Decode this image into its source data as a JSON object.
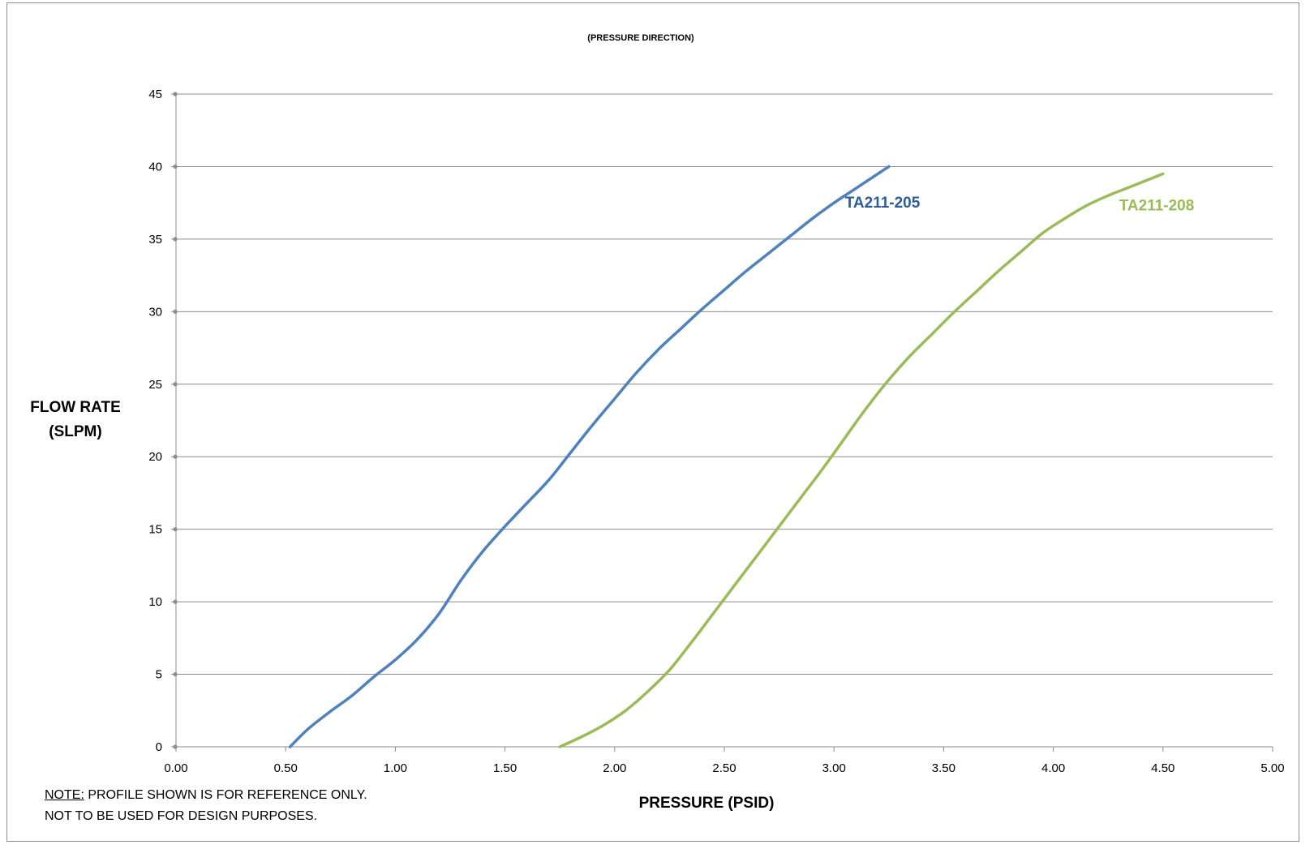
{
  "chart_data": {
    "type": "line",
    "title": "(PRESSURE DIRECTION)",
    "xlabel": "PRESSURE (PSID)",
    "ylabel_lines": [
      "FLOW RATE",
      "(SLPM)"
    ],
    "xlim": [
      0,
      5
    ],
    "ylim": [
      0,
      45
    ],
    "x_ticks": [
      "0.00",
      "0.50",
      "1.00",
      "1.50",
      "2.00",
      "2.50",
      "3.00",
      "3.50",
      "4.00",
      "4.50",
      "5.00"
    ],
    "y_ticks": [
      "0",
      "5",
      "10",
      "15",
      "20",
      "25",
      "30",
      "35",
      "40",
      "45"
    ],
    "grid": "horizontal",
    "series": [
      {
        "name": "TA211-205",
        "color": "#4f81bd",
        "label_color": "#2e5c99",
        "label_at": [
          3.05,
          37.5
        ],
        "x": [
          0.52,
          0.6,
          0.7,
          0.8,
          0.9,
          1.0,
          1.1,
          1.2,
          1.3,
          1.4,
          1.5,
          1.6,
          1.7,
          1.8,
          1.9,
          2.0,
          2.1,
          2.2,
          2.3,
          2.4,
          2.5,
          2.6,
          2.7,
          2.8,
          2.9,
          3.0,
          3.1,
          3.25
        ],
        "y": [
          0,
          1.2,
          2.4,
          3.5,
          4.8,
          6.0,
          7.4,
          9.2,
          11.5,
          13.5,
          15.2,
          16.8,
          18.4,
          20.3,
          22.2,
          24.0,
          25.8,
          27.4,
          28.8,
          30.2,
          31.5,
          32.8,
          34.0,
          35.2,
          36.4,
          37.5,
          38.5,
          40.0
        ]
      },
      {
        "name": "TA211-208",
        "color": "#9bbb59",
        "label_color": "#9bbb59",
        "label_at": [
          4.3,
          37.3
        ],
        "x": [
          1.75,
          1.85,
          1.95,
          2.05,
          2.15,
          2.25,
          2.35,
          2.45,
          2.55,
          2.65,
          2.75,
          2.85,
          2.95,
          3.05,
          3.15,
          3.25,
          3.35,
          3.45,
          3.55,
          3.65,
          3.75,
          3.85,
          3.95,
          4.05,
          4.15,
          4.25,
          4.35,
          4.5
        ],
        "y": [
          0,
          0.7,
          1.5,
          2.5,
          3.8,
          5.3,
          7.2,
          9.2,
          11.2,
          13.2,
          15.2,
          17.2,
          19.2,
          21.3,
          23.4,
          25.3,
          27.0,
          28.5,
          30.0,
          31.4,
          32.8,
          34.1,
          35.4,
          36.4,
          37.3,
          38.0,
          38.6,
          39.5
        ]
      }
    ]
  },
  "note": {
    "line1_prefix": "NOTE:",
    "line1_rest": " PROFILE SHOWN IS FOR REFERENCE ONLY.",
    "line2": "NOT TO BE USED FOR DESIGN PURPOSES."
  }
}
